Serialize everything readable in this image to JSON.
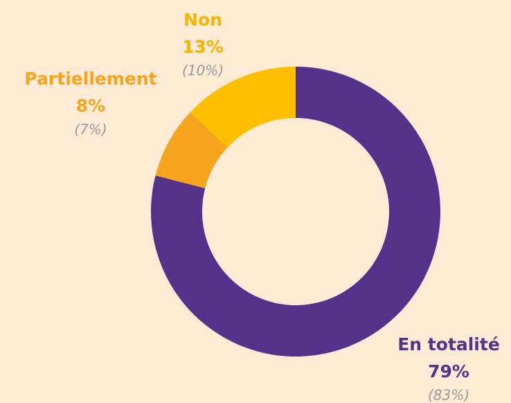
{
  "chart_data": {
    "type": "pie",
    "categories": [
      "En totalité",
      "Partiellement",
      "Non"
    ],
    "values": [
      79,
      8,
      13
    ],
    "value_labels": [
      "79%",
      "8%",
      "13%"
    ],
    "previous_values": [
      83,
      7,
      10
    ],
    "previous_value_labels": [
      "(83%)",
      "(7%)",
      "(10%)"
    ],
    "colors": [
      "#56318a",
      "#f6a41e",
      "#fdbf00"
    ],
    "label_colors": [
      "#56318a",
      "#f6a41e",
      "#f6b400"
    ]
  }
}
